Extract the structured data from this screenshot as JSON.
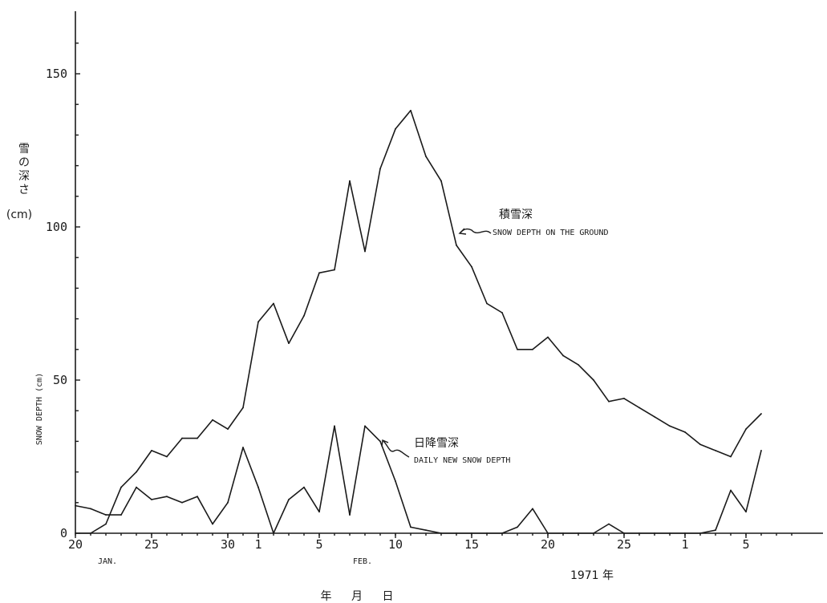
{
  "chart_data": {
    "type": "line",
    "y_ticks": [
      "150",
      "100",
      "50",
      "0"
    ],
    "y_tick_values": [
      150,
      100,
      50,
      0
    ],
    "ylim": [
      0,
      170
    ],
    "ylabel_en": "SNOW DEPTH (cm)",
    "ylabel_jp": "雪の深さ",
    "ylabel_jp_unit": "(cm)",
    "x_ticks": [
      "20",
      "25",
      "30",
      "1",
      "5",
      "10",
      "15",
      "20",
      "25",
      "1",
      "5"
    ],
    "month_labels": [
      "JAN.",
      "FEB."
    ],
    "year_label": "1971 年",
    "xlabel_jp": "年 月 日",
    "series": [
      {
        "name": "SNOW DEPTH ON THE GROUND",
        "name_jp": "積雪深",
        "x": [
          "1971-01-20",
          "1971-01-21",
          "1971-01-22",
          "1971-01-23",
          "1971-01-24",
          "1971-01-25",
          "1971-01-26",
          "1971-01-27",
          "1971-01-28",
          "1971-01-29",
          "1971-01-30",
          "1971-01-31",
          "1971-02-01",
          "1971-02-02",
          "1971-02-03",
          "1971-02-04",
          "1971-02-05",
          "1971-02-06",
          "1971-02-07",
          "1971-02-08",
          "1971-02-09",
          "1971-02-10",
          "1971-02-11",
          "1971-02-12",
          "1971-02-13",
          "1971-02-14",
          "1971-02-15",
          "1971-02-16",
          "1971-02-17",
          "1971-02-18",
          "1971-02-19",
          "1971-02-20",
          "1971-02-21",
          "1971-02-22",
          "1971-02-23",
          "1971-02-24",
          "1971-02-25",
          "1971-02-26",
          "1971-02-27",
          "1971-02-28",
          "1971-03-01",
          "1971-03-02",
          "1971-03-03",
          "1971-03-04",
          "1971-03-05",
          "1971-03-06"
        ],
        "values": [
          0,
          0,
          3,
          15,
          20,
          27,
          25,
          31,
          31,
          37,
          34,
          41,
          69,
          75,
          62,
          71,
          85,
          86,
          115,
          92,
          119,
          132,
          138,
          123,
          115,
          94,
          87,
          75,
          72,
          60,
          60,
          64,
          58,
          55,
          50,
          43,
          44,
          41,
          38,
          35,
          33,
          29,
          27,
          25,
          34,
          39
        ]
      },
      {
        "name": "DAILY NEW SNOW DEPTH",
        "name_jp": "日降雪深",
        "x": [
          "1971-01-20",
          "1971-01-21",
          "1971-01-22",
          "1971-01-23",
          "1971-01-24",
          "1971-01-25",
          "1971-01-26",
          "1971-01-27",
          "1971-01-28",
          "1971-01-29",
          "1971-01-30",
          "1971-01-31",
          "1971-02-01",
          "1971-02-02",
          "1971-02-03",
          "1971-02-04",
          "1971-02-05",
          "1971-02-06",
          "1971-02-07",
          "1971-02-08",
          "1971-02-09",
          "1971-02-10",
          "1971-02-11",
          "1971-02-12",
          "1971-02-13",
          "1971-02-14",
          "1971-02-15",
          "1971-02-16",
          "1971-02-17",
          "1971-02-18",
          "1971-02-19",
          "1971-02-20",
          "1971-02-21",
          "1971-02-22",
          "1971-02-23",
          "1971-02-24",
          "1971-02-25",
          "1971-02-26",
          "1971-02-27",
          "1971-02-28",
          "1971-03-01",
          "1971-03-02",
          "1971-03-03",
          "1971-03-04",
          "1971-03-05",
          "1971-03-06"
        ],
        "values": [
          9,
          8,
          6,
          6,
          15,
          11,
          12,
          10,
          12,
          3,
          10,
          28,
          15,
          0,
          11,
          15,
          7,
          35,
          6,
          35,
          30,
          17,
          2,
          1,
          0,
          0,
          0,
          0,
          0,
          2,
          8,
          0,
          0,
          0,
          0,
          3,
          0,
          0,
          0,
          0,
          0,
          0,
          1,
          14,
          7,
          27
        ]
      }
    ],
    "grid": false,
    "legend": "inline annotations"
  }
}
